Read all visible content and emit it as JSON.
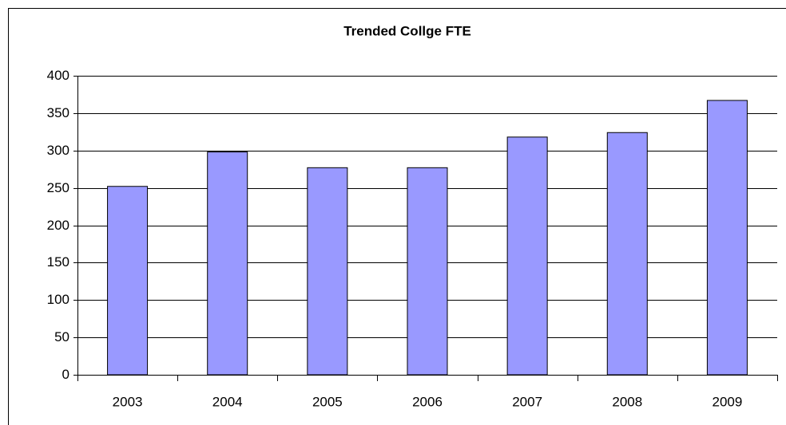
{
  "chart_data": {
    "type": "bar",
    "title": "Trended Collge FTE",
    "categories": [
      "2003",
      "2004",
      "2005",
      "2006",
      "2007",
      "2008",
      "2009"
    ],
    "values": [
      252,
      298,
      277,
      277,
      318,
      324,
      367
    ],
    "color": "#9999ff",
    "ylim": [
      0,
      400
    ],
    "yticks": [
      0,
      50,
      100,
      150,
      200,
      250,
      300,
      350,
      400
    ],
    "grid": true
  }
}
